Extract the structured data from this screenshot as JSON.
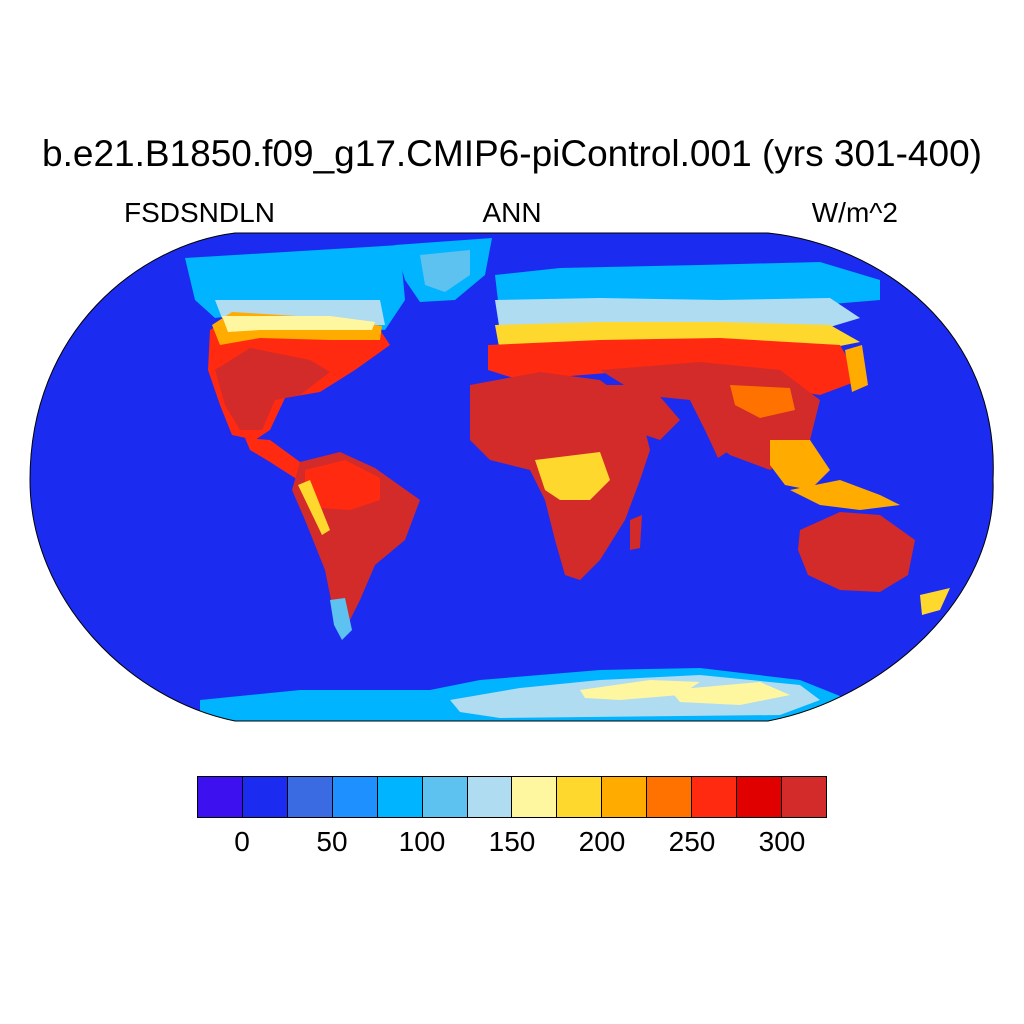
{
  "title": "b.e21.B1850.f09_g17.CMIP6-piControl.001 (yrs 301-400)",
  "variable": "FSDSNDLN",
  "season": "ANN",
  "units": "W/m^2",
  "colorbar": {
    "colors": [
      "#3d10f0",
      "#1b2cf0",
      "#3a6be2",
      "#1e90ff",
      "#00b4ff",
      "#5ec2f0",
      "#b0dcf2",
      "#fff6a0",
      "#ffd82e",
      "#ffab00",
      "#ff7200",
      "#ff2a10",
      "#e10000",
      "#d32a2a"
    ],
    "tick_labels": [
      "0",
      "50",
      "100",
      "150",
      "200",
      "250",
      "300"
    ]
  },
  "chart_data": {
    "type": "heatmap",
    "title": "b.e21.B1850.f09_g17.CMIP6-piControl.001 (yrs 301-400)",
    "variable": "FSDSNDLN",
    "season": "ANN",
    "units": "W/m^2",
    "projection": "Robinson",
    "contour_levels": [
      -25,
      0,
      25,
      50,
      75,
      100,
      125,
      150,
      175,
      200,
      225,
      250,
      275,
      300
    ],
    "tick_labels": [
      "0",
      "50",
      "100",
      "150",
      "200",
      "250",
      "300"
    ],
    "regions": [
      {
        "name": "Ocean",
        "value": 0
      },
      {
        "name": "Africa",
        "value": 310
      },
      {
        "name": "Australia",
        "value": 310
      },
      {
        "name": "South America",
        "value": 305
      },
      {
        "name": "North America south",
        "value": 300
      },
      {
        "name": "Eurasia south",
        "value": 300
      },
      {
        "name": "Eurasia north",
        "value": 140
      },
      {
        "name": "Greenland",
        "value": 140
      },
      {
        "name": "Antarctica",
        "value": 150
      }
    ]
  }
}
